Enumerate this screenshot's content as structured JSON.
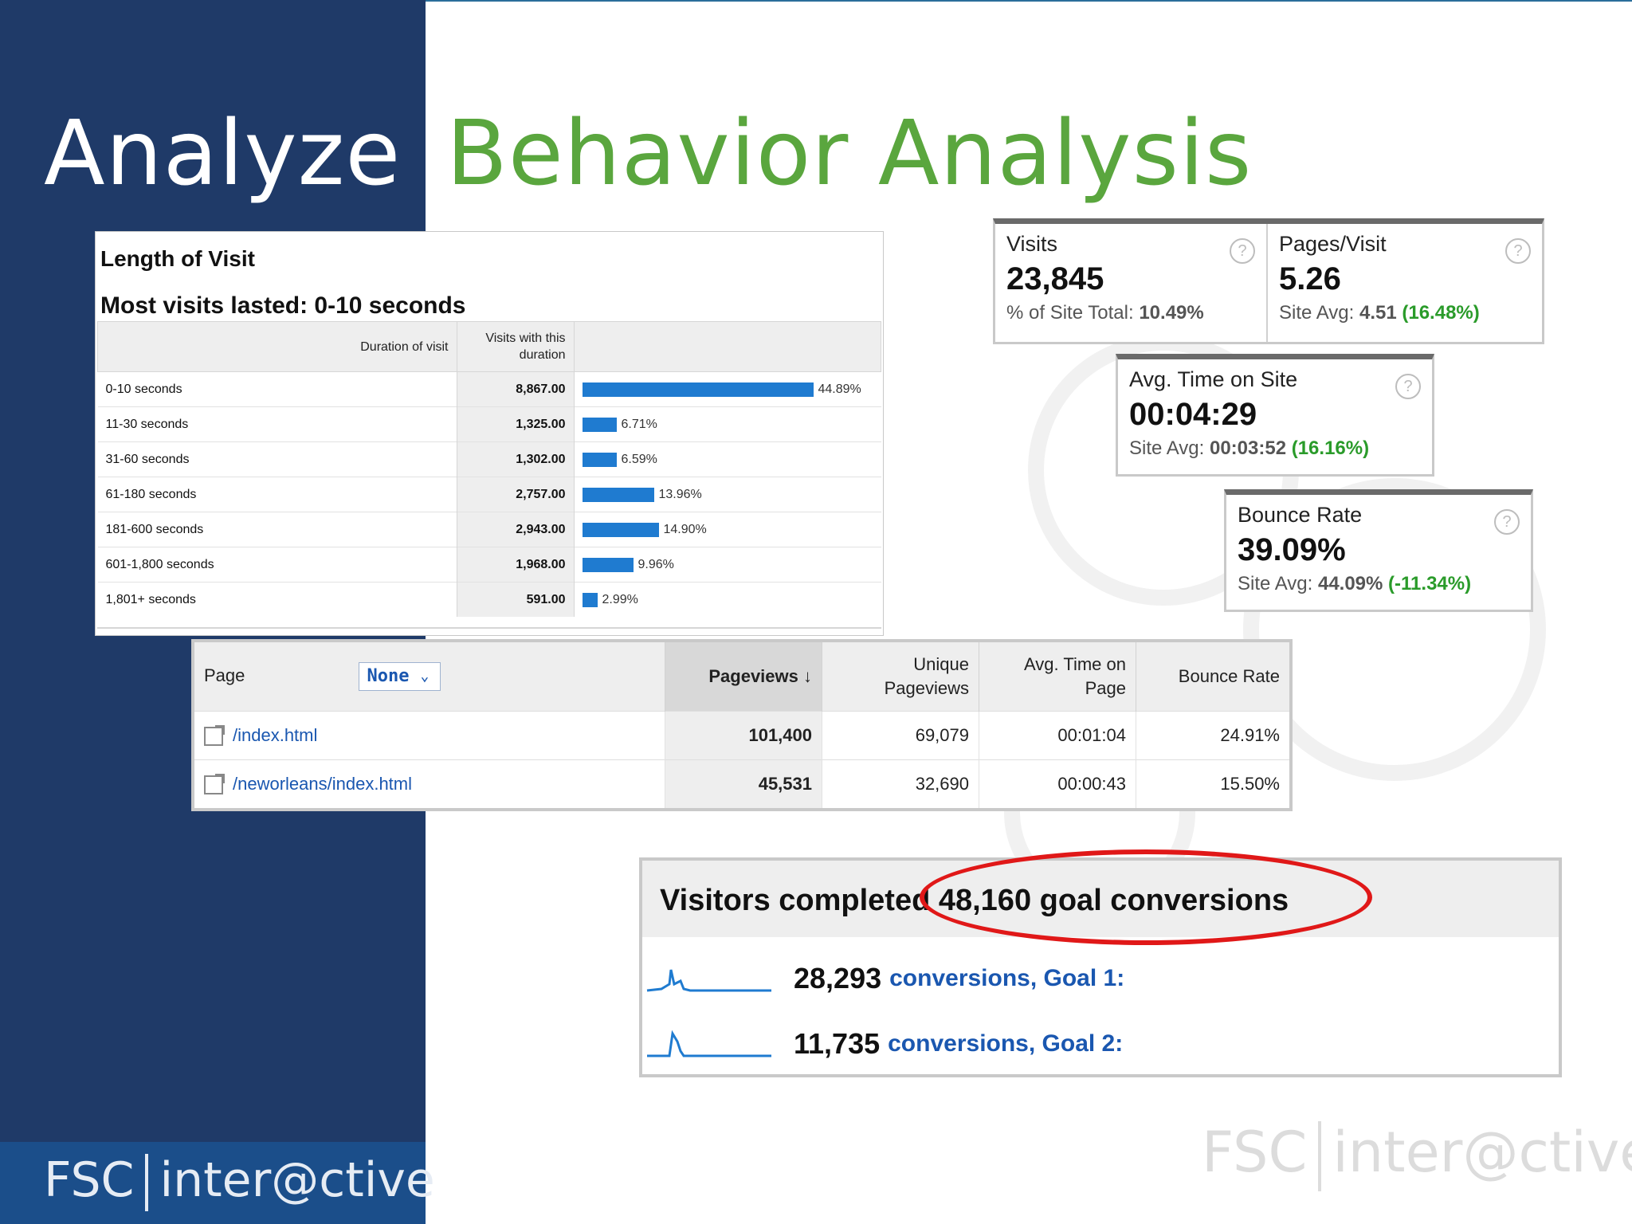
{
  "slide": {
    "section_title": "Analyze",
    "main_title": "Behavior Analysis",
    "brand_name": "FSC",
    "brand_sub": "inter@ctive"
  },
  "length_of_visit": {
    "title": "Length of Visit",
    "summary": "Most visits lasted: 0-10 seconds",
    "headers": {
      "duration": "Duration of visit",
      "visits_line1": "Visits with this",
      "visits_line2": "duration"
    },
    "rows": [
      {
        "duration": "0-10 seconds",
        "visits": "8,867.00",
        "percent": "44.89%",
        "share": 44.89
      },
      {
        "duration": "11-30 seconds",
        "visits": "1,325.00",
        "percent": "6.71%",
        "share": 6.71
      },
      {
        "duration": "31-60 seconds",
        "visits": "1,302.00",
        "percent": "6.59%",
        "share": 6.59
      },
      {
        "duration": "61-180 seconds",
        "visits": "2,757.00",
        "percent": "13.96%",
        "share": 13.96
      },
      {
        "duration": "181-600 seconds",
        "visits": "2,943.00",
        "percent": "14.90%",
        "share": 14.9
      },
      {
        "duration": "601-1,800 seconds",
        "visits": "1,968.00",
        "percent": "9.96%",
        "share": 9.96
      },
      {
        "duration": "1,801+ seconds",
        "visits": "591.00",
        "percent": "2.99%",
        "share": 2.99
      }
    ]
  },
  "scorecards": {
    "visits": {
      "label": "Visits",
      "value": "23,845",
      "sub_label": "% of Site Total:",
      "sub_value": "10.49%"
    },
    "pages_visit": {
      "label": "Pages/Visit",
      "value": "5.26",
      "sub_label": "Site Avg:",
      "sub_value": "4.51",
      "delta": "(16.48%)"
    },
    "avg_time": {
      "label": "Avg. Time on Site",
      "value": "00:04:29",
      "sub_label": "Site Avg:",
      "sub_value": "00:03:52",
      "delta": "(16.16%)"
    },
    "bounce": {
      "label": "Bounce Rate",
      "value": "39.09%",
      "sub_label": "Site Avg:",
      "sub_value": "44.09%",
      "delta": "(-11.34%)"
    },
    "help_glyph": "?",
    "delta_color": "#2a9b2a"
  },
  "pages_table": {
    "headers": {
      "page": "Page",
      "secondary": "None",
      "pageviews": "Pageviews",
      "unique_line1": "Unique",
      "unique_line2": "Pageviews",
      "avg_time_line1": "Avg. Time on",
      "avg_time_line2": "Page",
      "bounce": "Bounce Rate"
    },
    "rows": [
      {
        "page": "/index.html",
        "pageviews": "101,400",
        "unique": "69,079",
        "avg_time": "00:01:04",
        "bounce": "24.91%"
      },
      {
        "page": "/neworleans/index.html",
        "pageviews": "45,531",
        "unique": "32,690",
        "avg_time": "00:00:43",
        "bounce": "15.50%"
      }
    ]
  },
  "goals": {
    "headline": "Visitors completed 48,160 goal conversions",
    "items": [
      {
        "count": "28,293",
        "label": "conversions, Goal 1:"
      },
      {
        "count": "11,735",
        "label": "conversions, Goal 2:"
      }
    ],
    "highlight_color": "#e01818"
  }
}
